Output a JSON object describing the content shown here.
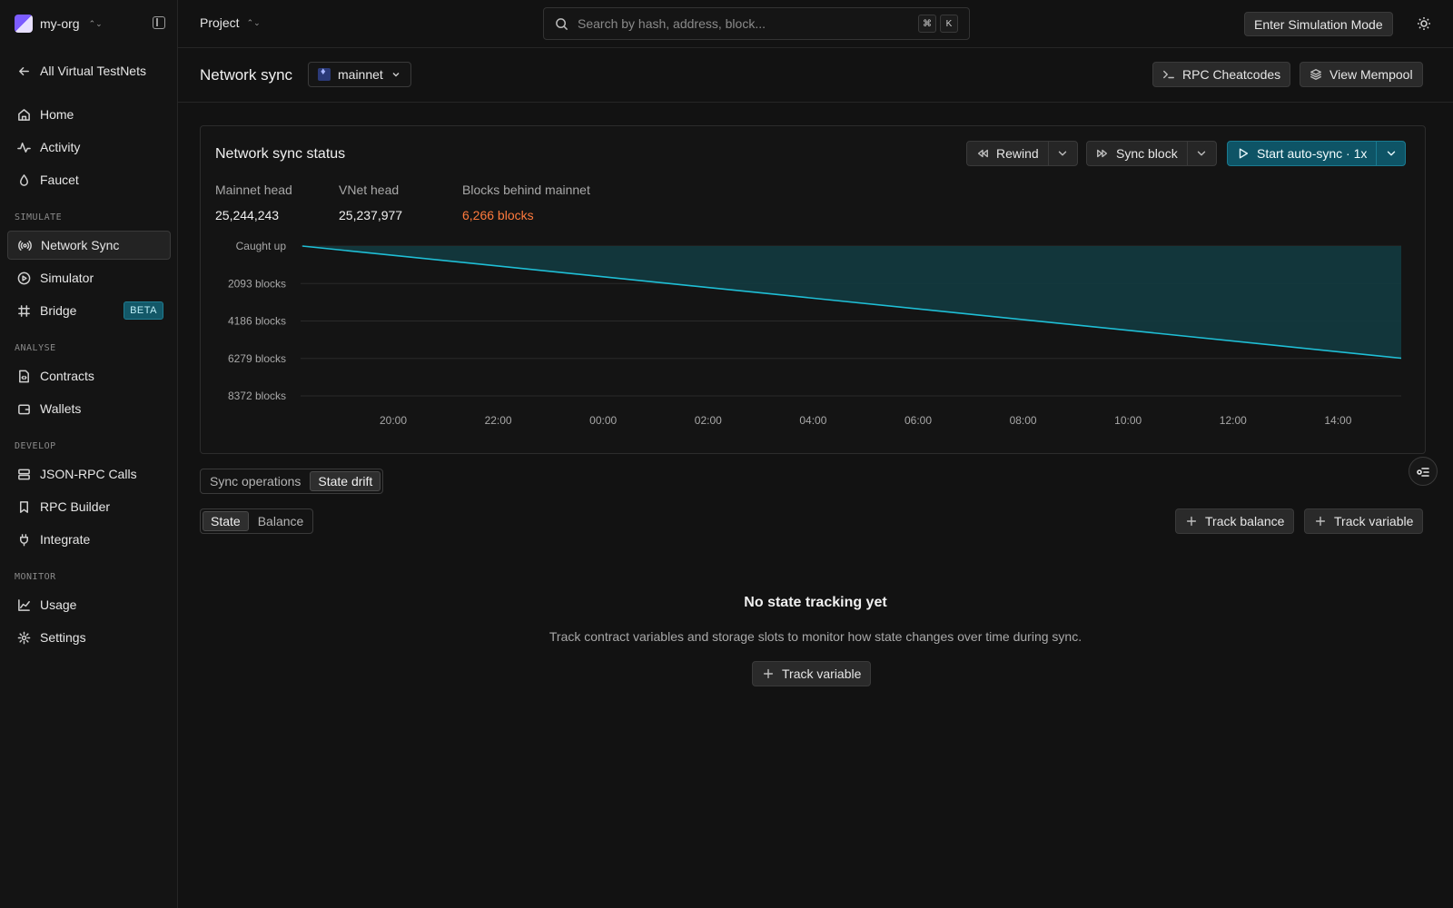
{
  "sidebar": {
    "org_name": "my-org",
    "back_label": "All Virtual TestNets",
    "nav_main": [
      {
        "label": "Home",
        "icon": "home-icon"
      },
      {
        "label": "Activity",
        "icon": "activity-icon"
      },
      {
        "label": "Faucet",
        "icon": "droplet-icon"
      }
    ],
    "sections": {
      "simulate": "SIMULATE",
      "analyse": "ANALYSE",
      "develop": "DEVELOP",
      "monitor": "MONITOR"
    },
    "simulate_items": [
      {
        "label": "Network Sync",
        "icon": "broadcast-icon",
        "active": true
      },
      {
        "label": "Simulator",
        "icon": "play-circle-icon"
      },
      {
        "label": "Bridge",
        "icon": "bridge-icon",
        "badge": "BETA"
      }
    ],
    "analyse_items": [
      {
        "label": "Contracts",
        "icon": "file-code-icon"
      },
      {
        "label": "Wallets",
        "icon": "wallet-icon"
      }
    ],
    "develop_items": [
      {
        "label": "JSON-RPC Calls",
        "icon": "server-icon"
      },
      {
        "label": "RPC Builder",
        "icon": "bookmark-icon"
      },
      {
        "label": "Integrate",
        "icon": "plug-icon"
      }
    ],
    "monitor_items": [
      {
        "label": "Usage",
        "icon": "line-chart-icon"
      },
      {
        "label": "Settings",
        "icon": "gear-icon"
      }
    ]
  },
  "topbar": {
    "project_label": "Project",
    "search_placeholder": "Search by hash, address, block...",
    "kbd_cmd": "⌘",
    "kbd_k": "K",
    "simulation_button": "Enter Simulation Mode"
  },
  "subheader": {
    "title": "Network sync",
    "network": "mainnet",
    "rpc_button": "RPC Cheatcodes",
    "mempool_button": "View Mempool"
  },
  "card": {
    "title": "Network sync status",
    "rewind_label": "Rewind",
    "sync_block_label": "Sync block",
    "auto_sync_label": "Start auto-sync · 1x",
    "stats": [
      {
        "label": "Mainnet head",
        "value": "25,244,243"
      },
      {
        "label": "VNet head",
        "value": "25,237,977"
      },
      {
        "label": "Blocks behind mainnet",
        "value": "6,266 blocks"
      }
    ]
  },
  "chart_data": {
    "type": "area",
    "title": "",
    "xlabel": "",
    "ylabel": "",
    "y_tick_labels": [
      "Caught up",
      "2093 blocks",
      "4186 blocks",
      "6279 blocks",
      "8372 blocks"
    ],
    "y_ticks": [
      0,
      2093,
      4186,
      6279,
      8372
    ],
    "ylim": [
      0,
      8372
    ],
    "y_inverted": true,
    "x_tick_labels": [
      "20:00",
      "22:00",
      "00:00",
      "02:00",
      "04:00",
      "06:00",
      "08:00",
      "10:00",
      "12:00",
      "14:00"
    ],
    "series": [
      {
        "points": [
          {
            "x": "18:12",
            "y": 0
          },
          {
            "x": "15:12",
            "y": 6266
          }
        ]
      }
    ],
    "grid": true,
    "line_color": "#1fbfd6",
    "fill_color": "#123a3f"
  },
  "tabs": {
    "main": [
      {
        "label": "Sync operations",
        "selected": false
      },
      {
        "label": "State drift",
        "selected": true
      }
    ],
    "sub": [
      {
        "label": "State",
        "selected": true
      },
      {
        "label": "Balance",
        "selected": false
      }
    ],
    "track_balance": "Track balance",
    "track_variable": "Track variable"
  },
  "empty": {
    "title": "No state tracking yet",
    "description": "Track contract variables and storage slots to monitor how state changes over time during sync.",
    "button": "Track variable"
  }
}
